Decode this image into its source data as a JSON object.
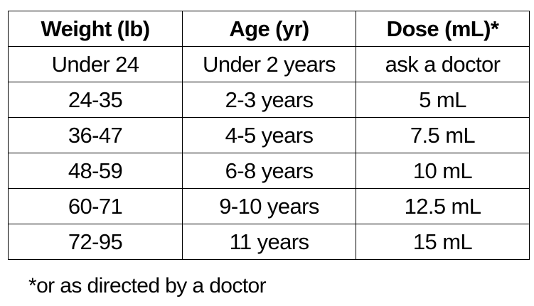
{
  "table": {
    "header": [
      "Weight (lb)",
      "Age (yr)",
      "Dose (mL)*"
    ],
    "rows": [
      [
        "Under 24",
        "Under 2 years",
        "ask a doctor"
      ],
      [
        "24-35",
        "2-3 years",
        "5 mL"
      ],
      [
        "36-47",
        "4-5 years",
        "7.5 mL"
      ],
      [
        "48-59",
        "6-8 years",
        "10 mL"
      ],
      [
        "60-71",
        "9-10 years",
        "12.5 mL"
      ],
      [
        "72-95",
        "11 years",
        "15 mL"
      ]
    ]
  },
  "footnote": "*or as directed by a doctor"
}
